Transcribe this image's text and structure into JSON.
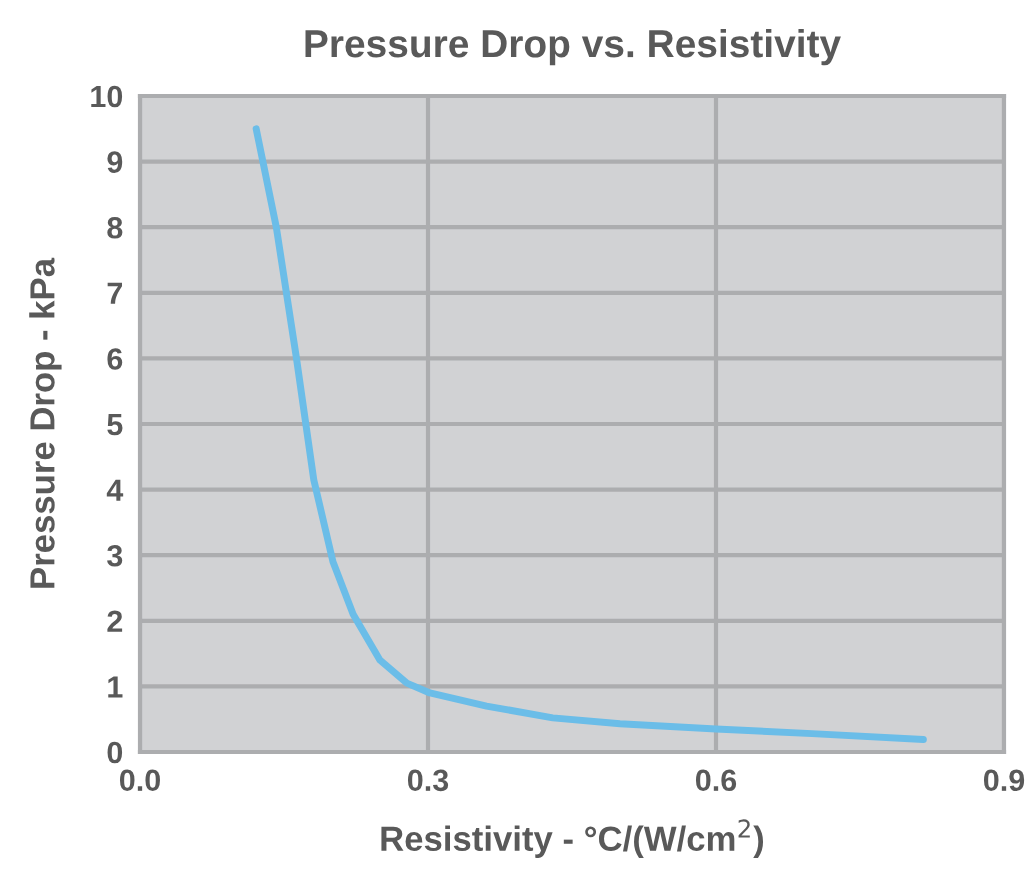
{
  "chart_data": {
    "type": "line",
    "title": "Pressure Drop vs. Resistivity",
    "xlabel": "Resistivity - °C/(W/cm$^{2}$)",
    "ylabel": "Pressure Drop - kPa",
    "series": [
      {
        "color": "#6bbde8",
        "x": [
          0.121,
          0.142,
          0.163,
          0.181,
          0.201,
          0.222,
          0.25,
          0.278,
          0.302,
          0.361,
          0.43,
          0.5,
          0.6,
          0.7,
          0.816
        ],
        "values": [
          9.5,
          8.0,
          6.0,
          4.15,
          2.9,
          2.1,
          1.4,
          1.05,
          0.9,
          0.7,
          0.52,
          0.43,
          0.35,
          0.28,
          0.19
        ]
      }
    ],
    "xlim": [
      0,
      0.9
    ],
    "xticks": [
      {
        "value": 0,
        "label": "0.0"
      },
      0.3,
      0.6,
      0.9
    ],
    "ylim": [
      0,
      10
    ],
    "yticks": [
      0,
      1,
      2,
      3,
      4,
      5,
      6,
      7,
      8,
      9,
      10
    ],
    "grid": true,
    "marker": "none",
    "line_style": "solid"
  }
}
